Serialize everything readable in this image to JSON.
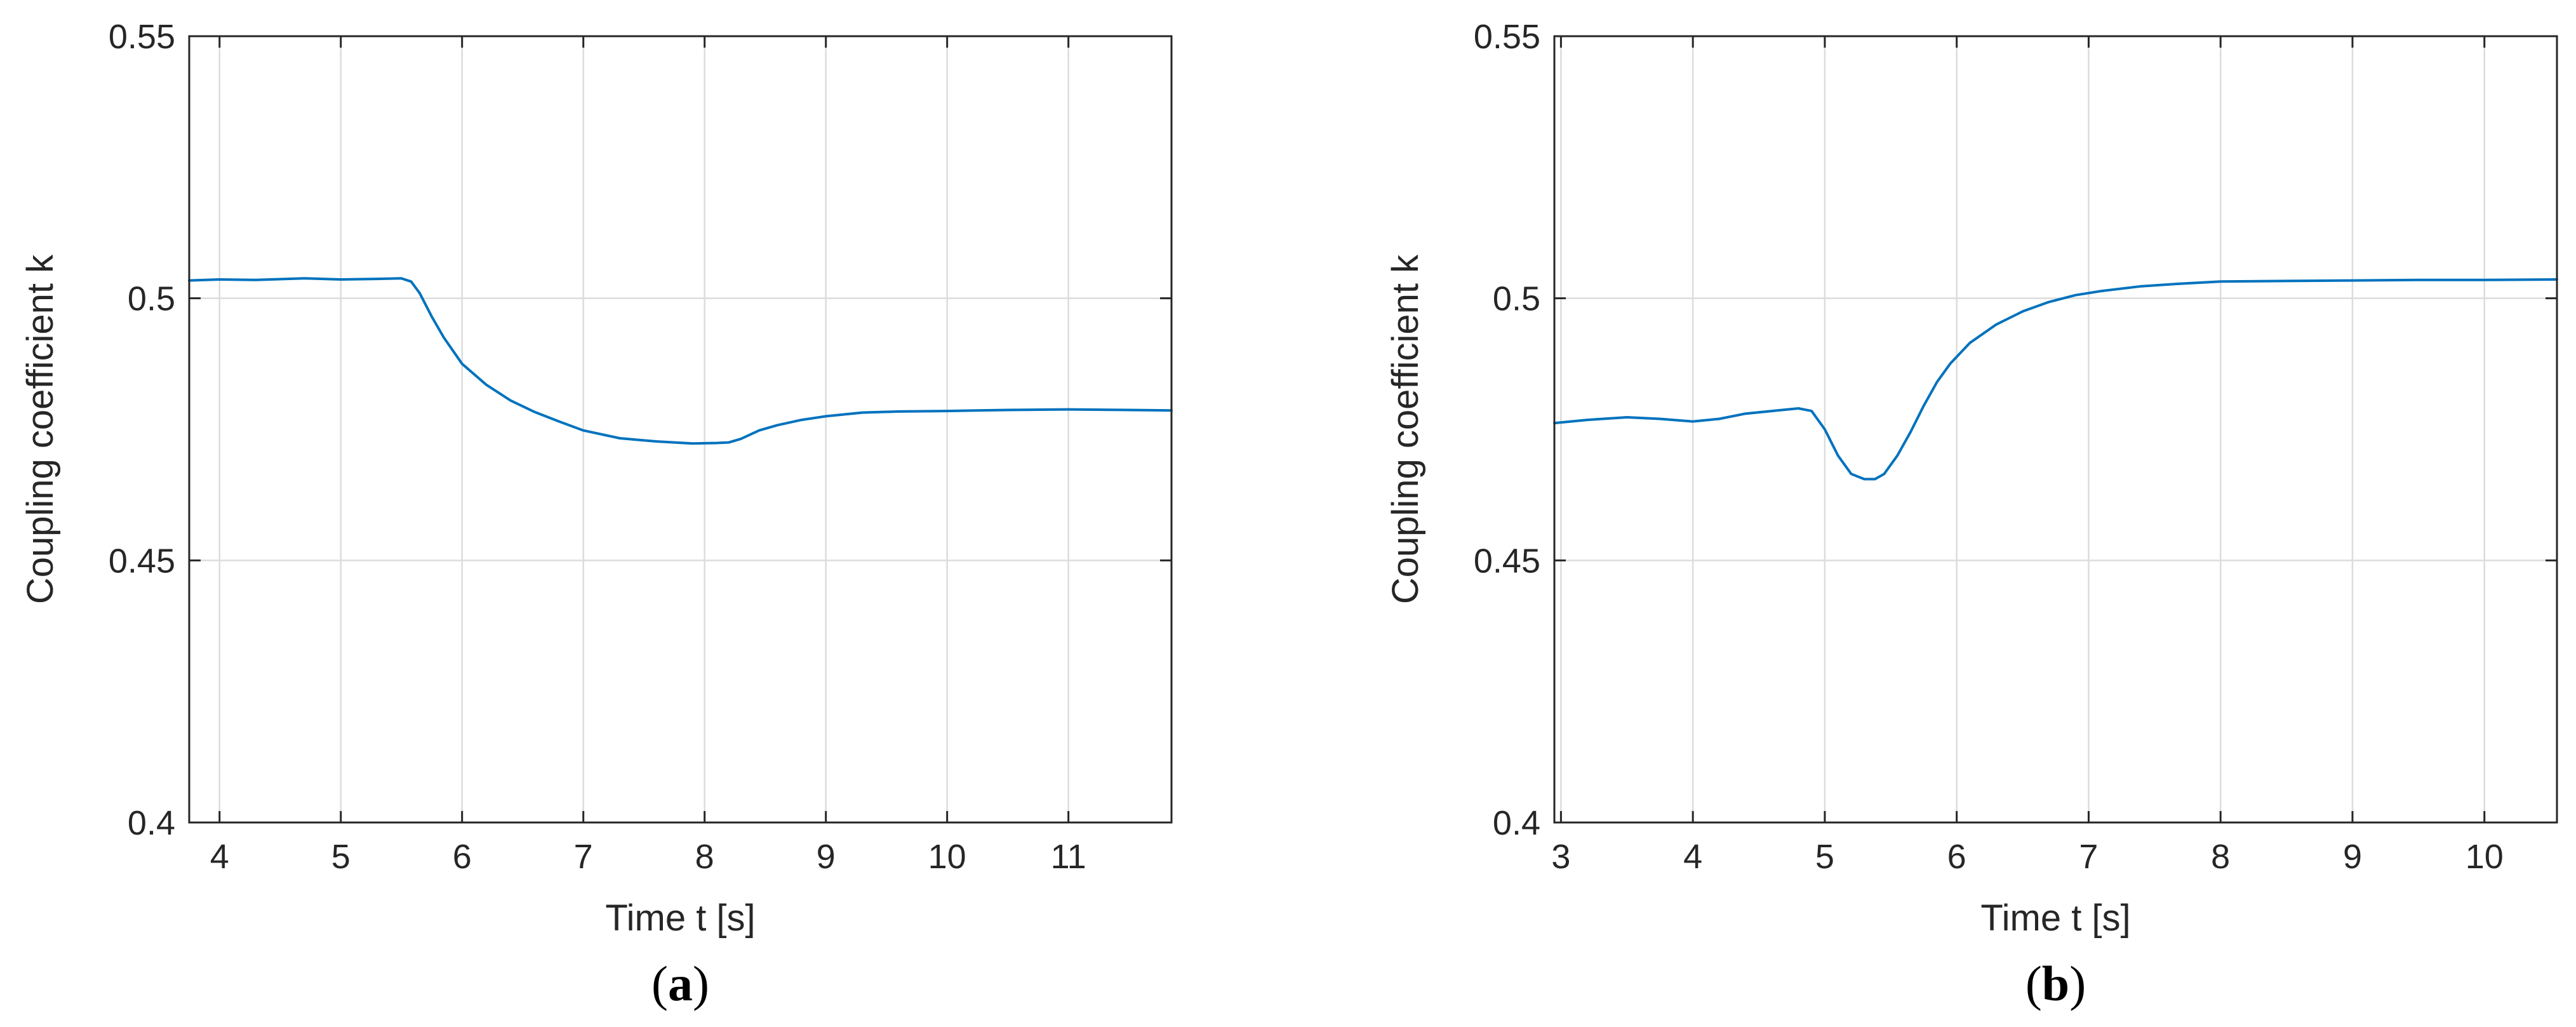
{
  "colors": {
    "series": "#0072BD",
    "axis": "#262626",
    "grid": "#DCDCDC"
  },
  "chart_data": [
    {
      "type": "line",
      "panel_label": "a",
      "caption_open": "(",
      "caption_close": ")",
      "xlabel": "Time t [s]",
      "ylabel": "Coupling coefficient k",
      "xlim": [
        3.75,
        11.85
      ],
      "ylim": [
        0.4,
        0.55
      ],
      "xticks": [
        4,
        5,
        6,
        7,
        8,
        9,
        10,
        11
      ],
      "xtick_labels": [
        "4",
        "5",
        "6",
        "7",
        "8",
        "9",
        "10",
        "11"
      ],
      "yticks": [
        0.4,
        0.45,
        0.5,
        0.55
      ],
      "ytick_labels": [
        "0.4",
        "0.45",
        "0.5",
        "0.55"
      ],
      "grid": true,
      "series": [
        {
          "x": [
            3.75,
            4.0,
            4.3,
            4.7,
            5.0,
            5.3,
            5.5,
            5.58,
            5.65,
            5.75,
            5.85,
            6.0,
            6.2,
            6.4,
            6.6,
            6.8,
            7.0,
            7.3,
            7.6,
            7.9,
            8.1,
            8.2,
            8.3,
            8.45,
            8.6,
            8.8,
            9.0,
            9.3,
            9.6,
            10.0,
            10.5,
            11.0,
            11.5,
            11.85
          ],
          "y": [
            0.5034,
            0.5036,
            0.5035,
            0.5038,
            0.5036,
            0.5037,
            0.5038,
            0.5032,
            0.501,
            0.4965,
            0.4925,
            0.4875,
            0.4835,
            0.4805,
            0.4783,
            0.4765,
            0.4748,
            0.4733,
            0.4727,
            0.4723,
            0.4724,
            0.4725,
            0.4732,
            0.4748,
            0.4758,
            0.4768,
            0.4775,
            0.4782,
            0.4784,
            0.4785,
            0.4787,
            0.4788,
            0.4787,
            0.4786
          ]
        }
      ]
    },
    {
      "type": "line",
      "panel_label": "b",
      "caption_open": "(",
      "caption_close": ")",
      "xlabel": "Time t [s]",
      "ylabel": "Coupling coefficient k",
      "xlim": [
        2.95,
        10.55
      ],
      "ylim": [
        0.4,
        0.55
      ],
      "xticks": [
        3,
        4,
        5,
        6,
        7,
        8,
        9,
        10
      ],
      "xtick_labels": [
        "3",
        "4",
        "5",
        "6",
        "7",
        "8",
        "9",
        "10"
      ],
      "yticks": [
        0.4,
        0.45,
        0.5,
        0.55
      ],
      "ytick_labels": [
        "0.4",
        "0.45",
        "0.5",
        "0.55"
      ],
      "grid": true,
      "series": [
        {
          "x": [
            2.95,
            3.2,
            3.5,
            3.75,
            4.0,
            4.2,
            4.4,
            4.6,
            4.8,
            4.9,
            5.0,
            5.1,
            5.2,
            5.3,
            5.38,
            5.45,
            5.55,
            5.65,
            5.75,
            5.85,
            5.95,
            6.1,
            6.3,
            6.5,
            6.7,
            6.9,
            7.1,
            7.4,
            7.7,
            8.0,
            8.5,
            9.0,
            9.5,
            10.0,
            10.55
          ],
          "y": [
            0.4762,
            0.4768,
            0.4773,
            0.477,
            0.4765,
            0.477,
            0.478,
            0.4785,
            0.479,
            0.4785,
            0.475,
            0.47,
            0.4665,
            0.4655,
            0.4655,
            0.4665,
            0.47,
            0.4745,
            0.4795,
            0.484,
            0.4875,
            0.4915,
            0.495,
            0.4975,
            0.4993,
            0.5006,
            0.5014,
            0.5023,
            0.5028,
            0.5032,
            0.5033,
            0.5034,
            0.5035,
            0.5035,
            0.5036
          ]
        }
      ]
    }
  ]
}
